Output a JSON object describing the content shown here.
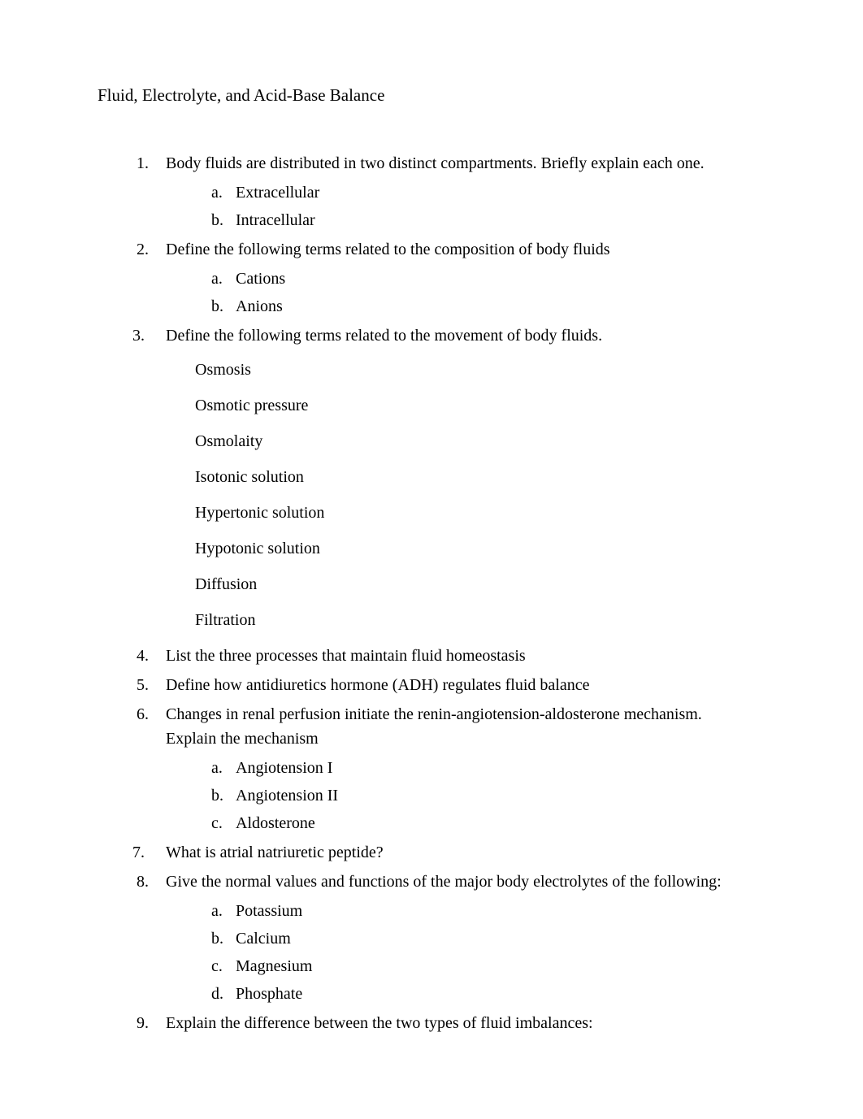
{
  "title": "Fluid, Electrolyte, and Acid-Base Balance",
  "questions": {
    "q1": {
      "text": "Body fluids are distributed in two distinct compartments.   Briefly explain each one.",
      "sub": {
        "a": "Extracellular",
        "b": "Intracellular"
      }
    },
    "q2": {
      "text": "Define the following terms related to the composition of body fluids",
      "sub": {
        "a": "Cations",
        "b": "Anions"
      }
    },
    "q3": {
      "text": "Define the following terms related to the movement of body fluids.",
      "terms": {
        "t1": "Osmosis",
        "t2": "Osmotic pressure",
        "t3": "Osmolaity",
        "t4": "Isotonic solution",
        "t5": "Hypertonic solution",
        "t6": "Hypotonic solution",
        "t7": "Diffusion",
        "t8": "Filtration"
      }
    },
    "q4": {
      "text": "List the three processes that maintain fluid homeostasis"
    },
    "q5": {
      "text": "Define how antidiuretics hormone (ADH) regulates fluid balance"
    },
    "q6": {
      "text": "Changes in renal perfusion initiate the renin-angiotension-aldosterone mechanism.",
      "cont": "Explain the mechanism",
      "sub": {
        "a": "Angiotension I",
        "b": "Angiotension II",
        "c": "Aldosterone"
      }
    },
    "q7": {
      "text": "What is atrial natriuretic peptide?"
    },
    "q8": {
      "text": "Give the normal values and functions of the major body electrolytes of the following:",
      "sub": {
        "a": "Potassium",
        "b": "Calcium",
        "c": "Magnesium",
        "d": "Phosphate"
      }
    },
    "q9": {
      "text": "Explain the difference between the two types of fluid imbalances:"
    }
  }
}
